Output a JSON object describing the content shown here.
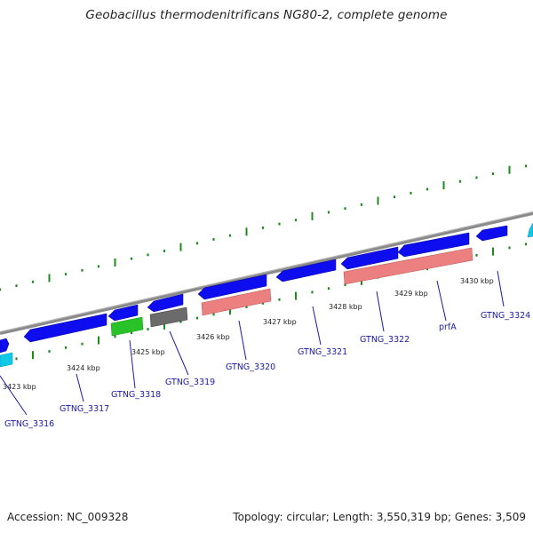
{
  "title": "Geobacillus thermodenitrificans NG80-2, complete genome",
  "footer": {
    "accession_text": "Accession: NC_009328",
    "summary_text": "Topology: circular; Length: 3,550,319 bp; Genes: 3,509"
  },
  "colors": {
    "backbone": "#8a8a8a",
    "tick_green": "#1e8a1e",
    "cds_blue": "#0d0df0",
    "cds_cyan": "#10c8e8",
    "gene_green": "#29c329",
    "gene_gray": "#6b6b6b",
    "gene_salmon": "#ec8080",
    "label_blue": "#1a1aa6"
  },
  "kbp_marks": [
    "3423 kbp",
    "3424 kbp",
    "3425 kbp",
    "3426 kbp",
    "3427 kbp",
    "3428 kbp",
    "3429 kbp",
    "3430 kbp"
  ],
  "gene_labels": [
    "GTNG_3316",
    "GTNG_3317",
    "GTNG_3318",
    "GTNG_3319",
    "GTNG_3320",
    "GTNG_3321",
    "GTNG_3322",
    "prfA",
    "GTNG_3324"
  ]
}
